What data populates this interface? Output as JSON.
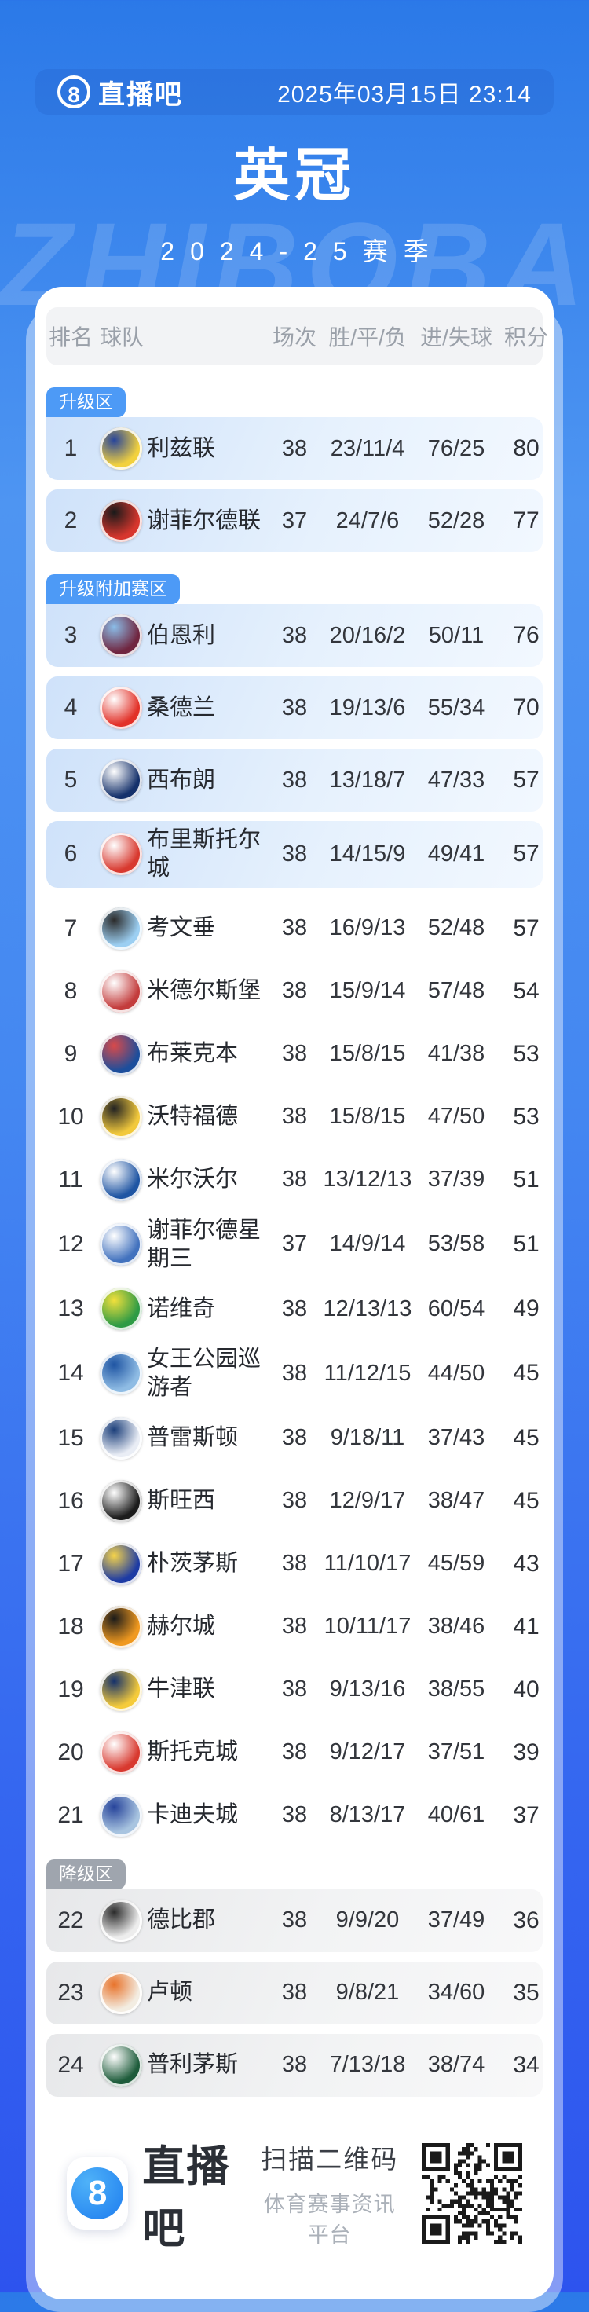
{
  "header": {
    "logo_icon": "8",
    "logo_text": "直播吧",
    "datetime": "2025年03月15日 23:14"
  },
  "title": "英冠",
  "season": "2024-25赛季",
  "watermark": "ZHIBOBA",
  "colors": {
    "badge_blue": "#4D9AF6",
    "badge_gray": "#9FA5AE",
    "zone_blue_tint": "#D5E7FB",
    "zone_gray_tint": "#E9EAEC",
    "page_top": "#2B79E8",
    "page_bottom": "#2D53EE"
  },
  "table": {
    "columns": [
      "排名",
      "球队",
      "场次",
      "胜/平/负",
      "进/失球",
      "积分"
    ],
    "zone_labels": [
      "升级区",
      "升级附加赛区",
      "降级区"
    ],
    "rows": [
      {
        "rank": "1",
        "team": "利兹联",
        "played": "38",
        "wdl": "23/11/4",
        "goals": "76/25",
        "points": "80",
        "zone": "blue",
        "badge": "升级区",
        "crest": [
          "#F2D13E",
          "#27449B"
        ]
      },
      {
        "rank": "2",
        "team": "谢菲尔德联",
        "played": "37",
        "wdl": "24/7/6",
        "goals": "52/28",
        "points": "77",
        "zone": "blue",
        "crest": [
          "#D7362D",
          "#1A1A1A"
        ]
      },
      {
        "rank": "3",
        "team": "伯恩利",
        "played": "38",
        "wdl": "20/16/2",
        "goals": "50/11",
        "points": "76",
        "zone": "blue",
        "badge": "升级附加赛区",
        "crest": [
          "#70253F",
          "#8BBDE8"
        ]
      },
      {
        "rank": "4",
        "team": "桑德兰",
        "played": "38",
        "wdl": "19/13/6",
        "goals": "55/34",
        "points": "70",
        "zone": "blue",
        "crest": [
          "#E23128",
          "#FFFFFF"
        ]
      },
      {
        "rank": "5",
        "team": "西布朗",
        "played": "38",
        "wdl": "13/18/7",
        "goals": "47/33",
        "points": "57",
        "zone": "blue",
        "crest": [
          "#15316B",
          "#FFFFFF"
        ]
      },
      {
        "rank": "6",
        "team": "布里斯托尔城",
        "played": "38",
        "wdl": "14/15/9",
        "goals": "49/41",
        "points": "57",
        "zone": "blue",
        "crest": [
          "#D8392F",
          "#FFFFFF"
        ]
      },
      {
        "rank": "7",
        "team": "考文垂",
        "played": "38",
        "wdl": "16/9/13",
        "goals": "52/48",
        "points": "57",
        "zone": "none",
        "crest": [
          "#9CCFF2",
          "#2B2B2B"
        ]
      },
      {
        "rank": "8",
        "team": "米德尔斯堡",
        "played": "38",
        "wdl": "15/9/14",
        "goals": "57/48",
        "points": "54",
        "zone": "none",
        "crest": [
          "#C33C3C",
          "#FFFFFF"
        ]
      },
      {
        "rank": "9",
        "team": "布莱克本",
        "played": "38",
        "wdl": "15/8/15",
        "goals": "41/38",
        "points": "53",
        "zone": "none",
        "crest": [
          "#1C4E9C",
          "#D94A4A"
        ]
      },
      {
        "rank": "10",
        "team": "沃特福德",
        "played": "38",
        "wdl": "15/8/15",
        "goals": "47/50",
        "points": "53",
        "zone": "none",
        "crest": [
          "#F2C93C",
          "#222222"
        ]
      },
      {
        "rank": "11",
        "team": "米尔沃尔",
        "played": "38",
        "wdl": "13/12/13",
        "goals": "37/39",
        "points": "51",
        "zone": "none",
        "crest": [
          "#1F55A3",
          "#FFFFFF"
        ]
      },
      {
        "rank": "12",
        "team": "谢菲尔德星期三",
        "played": "37",
        "wdl": "14/9/14",
        "goals": "53/58",
        "points": "51",
        "zone": "none",
        "crest": [
          "#4272BE",
          "#FFFFFF"
        ]
      },
      {
        "rank": "13",
        "team": "诺维奇",
        "played": "38",
        "wdl": "12/13/13",
        "goals": "60/54",
        "points": "49",
        "zone": "none",
        "crest": [
          "#2E9B45",
          "#F2E03C"
        ]
      },
      {
        "rank": "14",
        "team": "女王公园巡游者",
        "played": "38",
        "wdl": "11/12/15",
        "goals": "44/50",
        "points": "45",
        "zone": "none",
        "crest": [
          "#8FBCE4",
          "#1F55A3"
        ]
      },
      {
        "rank": "15",
        "team": "普雷斯顿",
        "played": "38",
        "wdl": "9/18/11",
        "goals": "37/43",
        "points": "45",
        "zone": "none",
        "crest": [
          "#E9EDF5",
          "#1C3F7A"
        ]
      },
      {
        "rank": "16",
        "team": "斯旺西",
        "played": "38",
        "wdl": "12/9/17",
        "goals": "38/47",
        "points": "45",
        "zone": "none",
        "crest": [
          "#1C1C1C",
          "#FFFFFF"
        ]
      },
      {
        "rank": "17",
        "team": "朴茨茅斯",
        "played": "38",
        "wdl": "11/10/17",
        "goals": "45/59",
        "points": "43",
        "zone": "none",
        "crest": [
          "#1D3BA4",
          "#F5D34A"
        ]
      },
      {
        "rank": "18",
        "team": "赫尔城",
        "played": "38",
        "wdl": "10/11/17",
        "goals": "38/46",
        "points": "41",
        "zone": "none",
        "crest": [
          "#F0991F",
          "#1A1A1A"
        ]
      },
      {
        "rank": "19",
        "team": "牛津联",
        "played": "38",
        "wdl": "9/13/16",
        "goals": "38/55",
        "points": "40",
        "zone": "none",
        "crest": [
          "#F5CB3B",
          "#15316B"
        ]
      },
      {
        "rank": "20",
        "team": "斯托克城",
        "played": "38",
        "wdl": "9/12/17",
        "goals": "37/51",
        "points": "39",
        "zone": "none",
        "crest": [
          "#D8392F",
          "#FFFFFF"
        ]
      },
      {
        "rank": "21",
        "team": "卡迪夫城",
        "played": "38",
        "wdl": "8/13/17",
        "goals": "40/61",
        "points": "37",
        "zone": "none",
        "crest": [
          "#A8C4E0",
          "#27449B"
        ]
      },
      {
        "rank": "22",
        "team": "德比郡",
        "played": "38",
        "wdl": "9/9/20",
        "goals": "37/49",
        "points": "36",
        "zone": "gray",
        "badge": "降级区",
        "crest": [
          "#EDEDED",
          "#2B2B2B"
        ]
      },
      {
        "rank": "23",
        "team": "卢顿",
        "played": "38",
        "wdl": "9/8/21",
        "goals": "34/60",
        "points": "35",
        "zone": "gray",
        "crest": [
          "#F3EDE2",
          "#E8732B"
        ]
      },
      {
        "rank": "24",
        "team": "普利茅斯",
        "played": "38",
        "wdl": "7/13/18",
        "goals": "38/74",
        "points": "34",
        "zone": "gray",
        "crest": [
          "#1E5C3B",
          "#FFFFFF"
        ]
      }
    ]
  },
  "footer": {
    "logo_icon": "8",
    "logo_text": "直播吧",
    "qr_caption": "扫描二维码",
    "qr_subcaption": "体育赛事资讯平台"
  }
}
